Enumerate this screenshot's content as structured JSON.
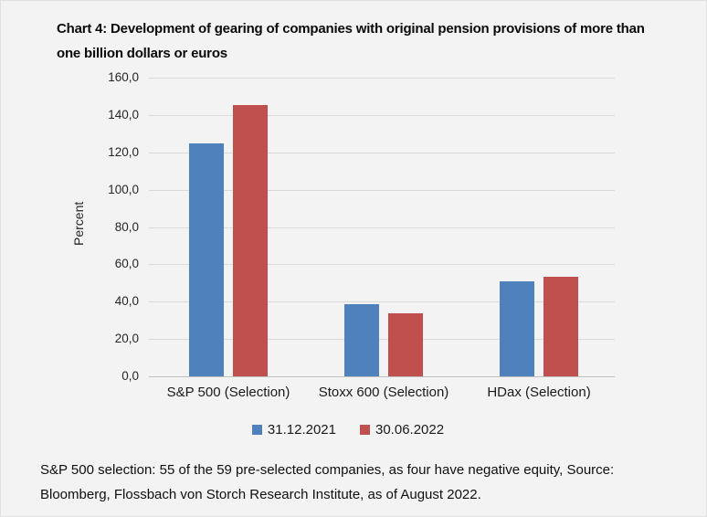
{
  "header": {
    "line1": "Chart 4: Development of gearing of companies with original pension provisions of more than",
    "line2": "one billion dollars or euros"
  },
  "footer": {
    "line1": "S&P 500 selection: 55 of the 59 pre-selected companies, as four have negative equity, Source:",
    "line2": "Bloomberg, Flossbach von Storch Research Institute, as of August 2022."
  },
  "colors": {
    "background": "#f3f3f3",
    "gridline": "#d9d9d9",
    "axis_line": "#bfbfbf",
    "series_blue": "#4f81bd",
    "series_red": "#c0504d"
  },
  "chart_data": {
    "type": "bar",
    "title": "Chart 4: Development of gearing of companies with original pension provisions of more than one billion dollars or euros",
    "xlabel": "",
    "ylabel": "Percent",
    "ylim": [
      0,
      160
    ],
    "ytick_step": 20,
    "grid": true,
    "legend_position": "bottom",
    "categories": [
      "S&P 500 (Selection)",
      "Stoxx 600 (Selection)",
      "HDax (Selection)"
    ],
    "series": [
      {
        "name": "31.12.2021",
        "color": "#4f81bd",
        "values": [
          125.0,
          38.5,
          50.7
        ]
      },
      {
        "name": "30.06.2022",
        "color": "#c0504d",
        "values": [
          145.5,
          34.0,
          53.3
        ]
      }
    ],
    "yticks": [
      {
        "value": 0,
        "label": "0,0"
      },
      {
        "value": 20,
        "label": "20,0"
      },
      {
        "value": 40,
        "label": "40,0"
      },
      {
        "value": 60,
        "label": "60,0"
      },
      {
        "value": 80,
        "label": "80,0"
      },
      {
        "value": 100,
        "label": "100,0"
      },
      {
        "value": 120,
        "label": "120,0"
      },
      {
        "value": 140,
        "label": "140,0"
      },
      {
        "value": 160,
        "label": "160,0"
      }
    ]
  }
}
